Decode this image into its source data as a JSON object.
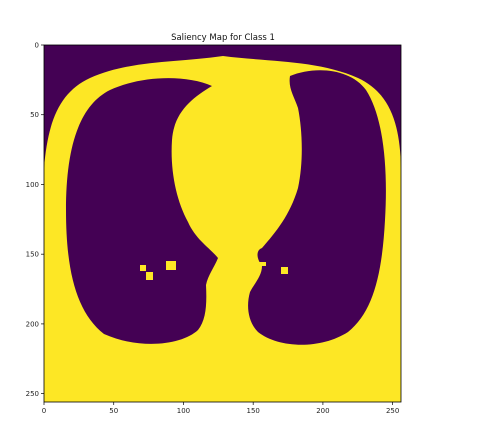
{
  "chart_data": {
    "type": "heatmap",
    "title": "Saliency Map for Class 1",
    "xlabel": "",
    "ylabel": "",
    "x_range": [
      0,
      256
    ],
    "y_range": [
      0,
      256
    ],
    "y_axis_inverted": true,
    "x_ticks": [
      0,
      50,
      100,
      150,
      200,
      250
    ],
    "y_ticks": [
      0,
      50,
      100,
      150,
      200,
      250
    ],
    "x_tick_labels": [
      "0",
      "50",
      "100",
      "150",
      "200",
      "250"
    ],
    "y_tick_labels": [
      "0",
      "50",
      "100",
      "150",
      "200",
      "250"
    ],
    "colormap": "viridis (binary)",
    "colors": {
      "low": "#440154",
      "high": "#fde725"
    },
    "description_values": "binary mask: yellow = 1 (body/mediastinum), purple = 0 (background and lung fields)",
    "grid": false
  }
}
